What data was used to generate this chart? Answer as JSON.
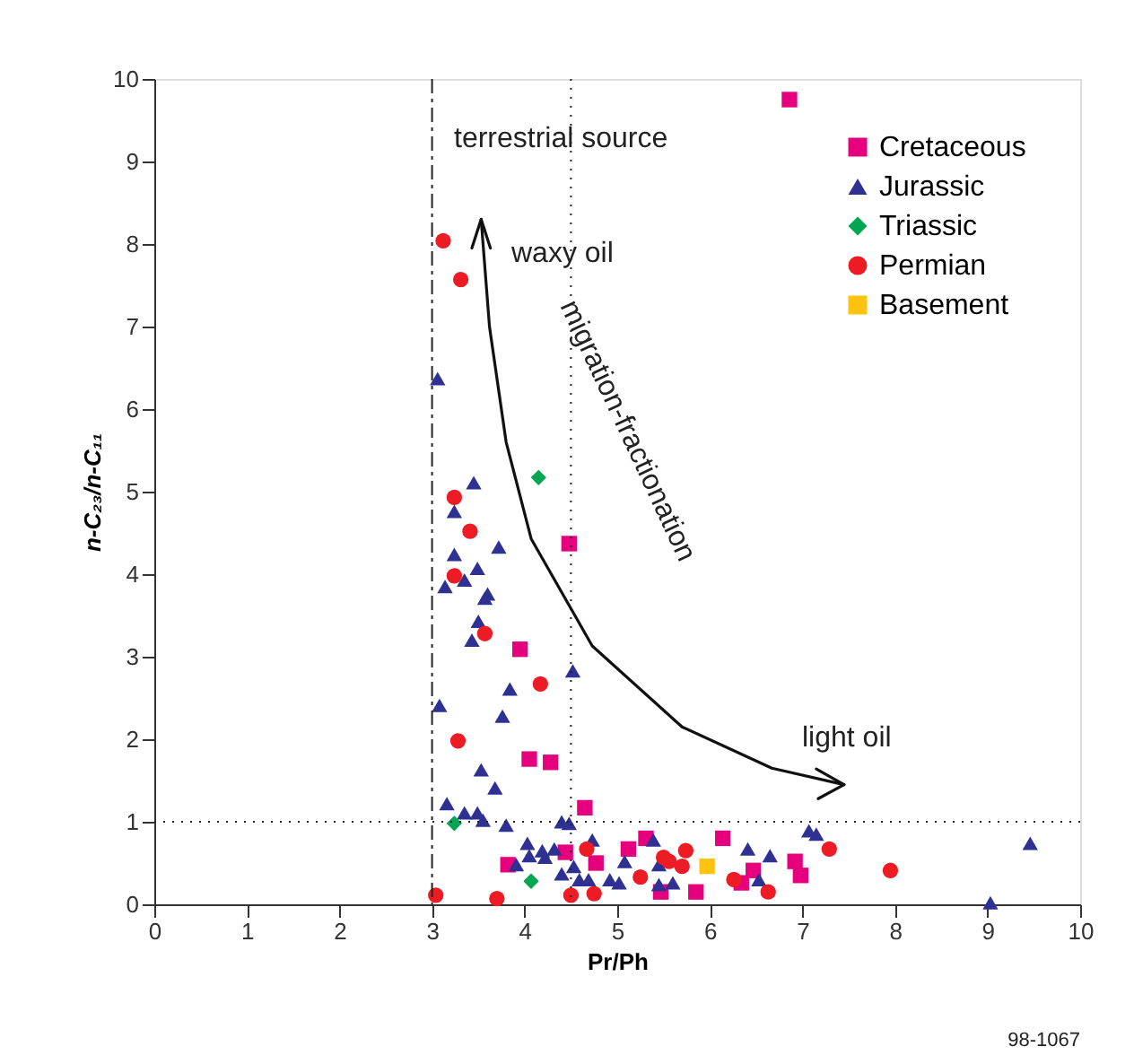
{
  "chart_data": {
    "type": "scatter",
    "xlabel": "Pr/Ph",
    "ylabel": "n-C₂₃/n-C₁₁",
    "xlim": [
      0,
      10
    ],
    "ylim": [
      0,
      10
    ],
    "xticks": [
      0,
      1,
      2,
      3,
      4,
      5,
      6,
      7,
      8,
      9,
      10
    ],
    "yticks": [
      0,
      1,
      2,
      3,
      4,
      5,
      6,
      7,
      8,
      9,
      10
    ],
    "grid": false,
    "legend": "top right",
    "series": [
      {
        "name": "Cretaceous",
        "color": "#e6007e",
        "marker": "square",
        "x": [
          6.86,
          4.48,
          3.95,
          4.05,
          4.28,
          4.65,
          5.12,
          5.31,
          4.77,
          3.82,
          6.14,
          5.85,
          5.47,
          6.34,
          6.47,
          6.92,
          6.98,
          4.44
        ],
        "values": [
          9.75,
          4.37,
          3.09,
          1.76,
          1.72,
          1.17,
          0.67,
          0.8,
          0.5,
          0.48,
          0.8,
          0.15,
          0.15,
          0.26,
          0.41,
          0.52,
          0.35,
          0.63
        ]
      },
      {
        "name": "Jurassic",
        "color": "#2e3192",
        "marker": "triangle",
        "x": [
          3.06,
          3.45,
          3.24,
          3.72,
          3.24,
          3.49,
          3.14,
          3.35,
          3.6,
          3.57,
          3.5,
          3.43,
          4.52,
          3.84,
          3.08,
          3.76,
          3.53,
          3.68,
          3.16,
          3.35,
          3.49,
          3.55,
          3.8,
          4.4,
          4.48,
          4.03,
          4.19,
          4.32,
          4.73,
          5.39,
          3.91,
          4.05,
          4.22,
          4.4,
          4.53,
          4.59,
          4.69,
          4.92,
          5.08,
          5.02,
          5.45,
          5.45,
          5.6,
          6.41,
          6.53,
          6.65,
          7.07,
          7.15,
          9.46,
          9.03
        ],
        "values": [
          6.37,
          5.11,
          4.76,
          4.33,
          4.24,
          4.07,
          3.85,
          3.93,
          3.76,
          3.71,
          3.43,
          3.2,
          2.83,
          2.61,
          2.41,
          2.28,
          1.63,
          1.41,
          1.22,
          1.11,
          1.11,
          1.02,
          0.96,
          1.0,
          0.98,
          0.74,
          0.65,
          0.67,
          0.78,
          0.78,
          0.48,
          0.59,
          0.57,
          0.37,
          0.46,
          0.3,
          0.3,
          0.3,
          0.52,
          0.26,
          0.48,
          0.24,
          0.26,
          0.67,
          0.3,
          0.59,
          0.89,
          0.85,
          0.74,
          0.02
        ]
      },
      {
        "name": "Triassic",
        "color": "#00a651",
        "marker": "diamond",
        "x": [
          4.15,
          3.24,
          4.07
        ],
        "values": [
          5.17,
          0.98,
          0.28
        ]
      },
      {
        "name": "Permian",
        "color": "#ed1c24",
        "marker": "circle",
        "x": [
          3.12,
          3.31,
          3.24,
          3.41,
          3.24,
          3.57,
          4.17,
          3.28,
          3.04,
          3.7,
          4.5,
          4.75,
          4.67,
          5.25,
          5.5,
          5.56,
          5.74,
          5.7,
          6.26,
          6.63,
          7.29,
          7.95
        ],
        "values": [
          8.04,
          7.57,
          4.93,
          4.52,
          3.98,
          3.28,
          2.67,
          1.98,
          0.11,
          0.07,
          0.11,
          0.13,
          0.67,
          0.33,
          0.57,
          0.52,
          0.65,
          0.46,
          0.3,
          0.15,
          0.67,
          0.41
        ]
      },
      {
        "name": "Basement",
        "color": "#ffc20e",
        "marker": "square",
        "x": [
          5.97
        ],
        "values": [
          0.46
        ]
      }
    ],
    "ref_lines": [
      {
        "axis": "x",
        "value": 3,
        "line_style": "dashed"
      },
      {
        "axis": "x",
        "value": 4.5,
        "line_style": "dotted"
      },
      {
        "axis": "y",
        "value": 1,
        "line_style": "dotted"
      }
    ],
    "annotations": [
      "terrestrial source",
      "waxy oil",
      "light oil",
      "migration-fractionation",
      "98-1067"
    ]
  }
}
